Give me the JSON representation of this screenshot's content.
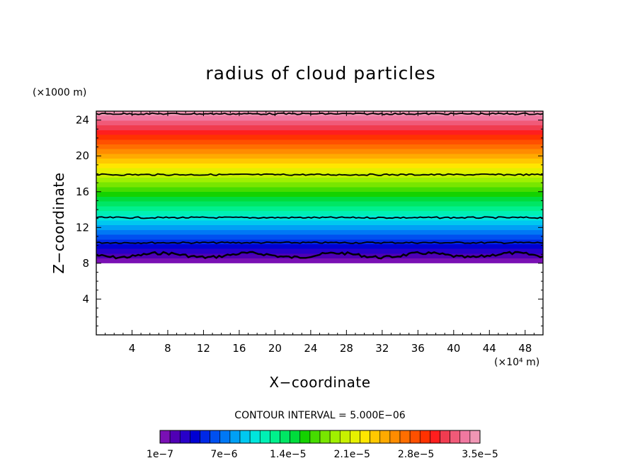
{
  "chart_data": {
    "type": "heatmap",
    "title": "radius of cloud particles",
    "xlabel": "X−coordinate",
    "ylabel": "Z−coordinate",
    "x_unit": "(×10⁴ m)",
    "y_unit": "(×1000 m)",
    "xlim": [
      0,
      50
    ],
    "ylim": [
      0,
      25
    ],
    "x_ticks": [
      4,
      8,
      12,
      16,
      20,
      24,
      28,
      32,
      36,
      40,
      44,
      48
    ],
    "y_ticks": [
      4,
      8,
      12,
      16,
      20,
      24
    ],
    "field_z_range": [
      8,
      25
    ],
    "field_value_range": [
      1e-07,
      3.5e-05
    ],
    "contour_interval_text": "CONTOUR INTERVAL = 5.000E−06",
    "contour_levels_z": [
      8.9,
      10.3,
      13.1,
      17.9,
      24.7
    ],
    "colorbar": {
      "labels": [
        "1e−7",
        "7e−6",
        "1.4e−5",
        "2.1e−5",
        "2.8e−5",
        "3.5e−5"
      ],
      "colors": [
        "#7a10b4",
        "#5000b4",
        "#2800c8",
        "#0000d2",
        "#0028e6",
        "#0050f0",
        "#0078f5",
        "#00a0f5",
        "#00c8f0",
        "#00e6dc",
        "#00f0b4",
        "#00f08c",
        "#00e664",
        "#00dc3c",
        "#14d200",
        "#46dc00",
        "#78e600",
        "#a0f000",
        "#c8f000",
        "#e6f000",
        "#ffe600",
        "#ffc800",
        "#ffaa00",
        "#ff8c00",
        "#ff6e00",
        "#ff5000",
        "#ff3200",
        "#ff1e1e",
        "#f03c50",
        "#f05a78",
        "#f078a0",
        "#f096b4"
      ]
    }
  }
}
